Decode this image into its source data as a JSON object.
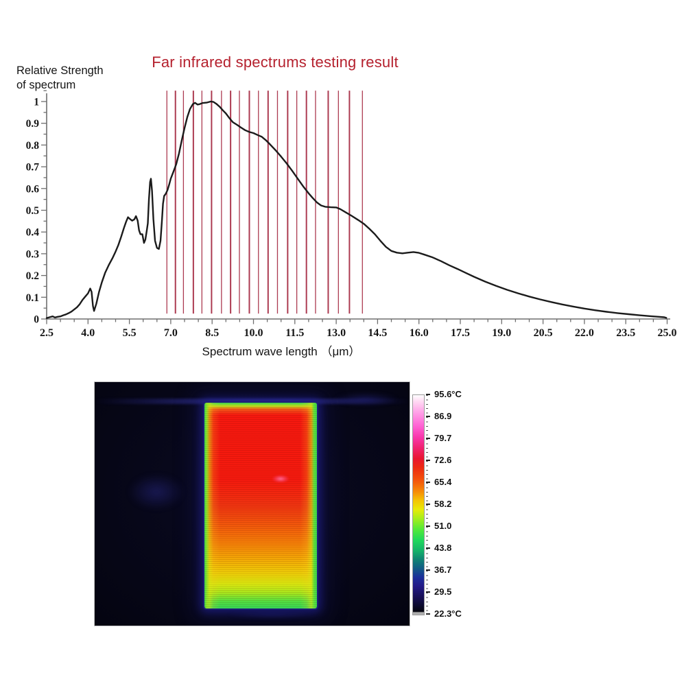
{
  "chart_data": {
    "type": "line",
    "title": "Far infrared spectrums testing result",
    "title_color": "#b5212e",
    "ylabel_line1": "Relative Strength",
    "ylabel_line2": "of spectrum",
    "xlabel": "Spectrum wave length （μm）",
    "xlim": [
      2.5,
      25.0
    ],
    "ylim": [
      0,
      1
    ],
    "grid": false,
    "legend": null,
    "x_tick_labels": [
      "2.5",
      "4.0",
      "5.5",
      "7.0",
      "8.5",
      "10.0",
      "11.5",
      "13.0",
      "14.5",
      "16.0",
      "17.5",
      "19.0",
      "20.5",
      "22.0",
      "23.5",
      "25.0"
    ],
    "x_minor_step": 0.5,
    "y_tick_labels": [
      "0",
      "0.1",
      "0.2",
      "0.3",
      "0.4",
      "0.5",
      "0.6",
      "0.7",
      "0.8",
      "0.9",
      "1"
    ],
    "y_minor_step": 0.05,
    "band_lines": {
      "color": "#a62a42",
      "top": 1.05,
      "bottom": 0.025,
      "wavelengths": [
        6.86,
        7.17,
        7.46,
        7.82,
        8.13,
        8.48,
        8.84,
        9.17,
        9.49,
        9.85,
        10.18,
        10.53,
        10.87,
        11.24,
        11.57,
        11.92,
        12.25,
        12.71,
        13.08,
        13.48,
        13.95
      ]
    },
    "series": [
      {
        "name": "relative spectrum strength",
        "color": "#1b1b1b",
        "points": [
          [
            2.5,
            0.004
          ],
          [
            2.6,
            0.008
          ],
          [
            2.72,
            0.012
          ],
          [
            2.8,
            0.007
          ],
          [
            2.9,
            0.01
          ],
          [
            3.0,
            0.012
          ],
          [
            3.1,
            0.017
          ],
          [
            3.2,
            0.021
          ],
          [
            3.3,
            0.027
          ],
          [
            3.4,
            0.034
          ],
          [
            3.5,
            0.044
          ],
          [
            3.6,
            0.054
          ],
          [
            3.7,
            0.068
          ],
          [
            3.8,
            0.088
          ],
          [
            3.9,
            0.103
          ],
          [
            4.0,
            0.118
          ],
          [
            4.08,
            0.14
          ],
          [
            4.13,
            0.125
          ],
          [
            4.18,
            0.06
          ],
          [
            4.22,
            0.037
          ],
          [
            4.3,
            0.07
          ],
          [
            4.4,
            0.125
          ],
          [
            4.5,
            0.168
          ],
          [
            4.62,
            0.212
          ],
          [
            4.75,
            0.247
          ],
          [
            4.9,
            0.283
          ],
          [
            5.0,
            0.31
          ],
          [
            5.1,
            0.34
          ],
          [
            5.2,
            0.377
          ],
          [
            5.3,
            0.418
          ],
          [
            5.38,
            0.447
          ],
          [
            5.45,
            0.468
          ],
          [
            5.52,
            0.46
          ],
          [
            5.6,
            0.452
          ],
          [
            5.68,
            0.458
          ],
          [
            5.74,
            0.473
          ],
          [
            5.8,
            0.452
          ],
          [
            5.85,
            0.408
          ],
          [
            5.9,
            0.39
          ],
          [
            5.97,
            0.39
          ],
          [
            6.03,
            0.35
          ],
          [
            6.08,
            0.365
          ],
          [
            6.13,
            0.405
          ],
          [
            6.17,
            0.44
          ],
          [
            6.21,
            0.55
          ],
          [
            6.25,
            0.63
          ],
          [
            6.28,
            0.645
          ],
          [
            6.32,
            0.59
          ],
          [
            6.37,
            0.46
          ],
          [
            6.43,
            0.36
          ],
          [
            6.5,
            0.327
          ],
          [
            6.57,
            0.322
          ],
          [
            6.63,
            0.36
          ],
          [
            6.68,
            0.45
          ],
          [
            6.72,
            0.53
          ],
          [
            6.76,
            0.566
          ],
          [
            6.82,
            0.576
          ],
          [
            6.88,
            0.592
          ],
          [
            6.94,
            0.617
          ],
          [
            7.0,
            0.645
          ],
          [
            7.1,
            0.678
          ],
          [
            7.2,
            0.712
          ],
          [
            7.3,
            0.762
          ],
          [
            7.4,
            0.822
          ],
          [
            7.5,
            0.878
          ],
          [
            7.6,
            0.928
          ],
          [
            7.7,
            0.966
          ],
          [
            7.8,
            0.988
          ],
          [
            7.88,
            0.994
          ],
          [
            7.97,
            0.986
          ],
          [
            8.05,
            0.988
          ],
          [
            8.15,
            0.993
          ],
          [
            8.3,
            0.995
          ],
          [
            8.45,
            1.0
          ],
          [
            8.55,
            0.998
          ],
          [
            8.65,
            0.99
          ],
          [
            8.78,
            0.975
          ],
          [
            8.9,
            0.958
          ],
          [
            9.0,
            0.945
          ],
          [
            9.12,
            0.925
          ],
          [
            9.25,
            0.905
          ],
          [
            9.4,
            0.893
          ],
          [
            9.55,
            0.88
          ],
          [
            9.7,
            0.868
          ],
          [
            9.85,
            0.86
          ],
          [
            10.0,
            0.855
          ],
          [
            10.15,
            0.846
          ],
          [
            10.3,
            0.838
          ],
          [
            10.45,
            0.822
          ],
          [
            10.6,
            0.803
          ],
          [
            10.8,
            0.776
          ],
          [
            11.0,
            0.747
          ],
          [
            11.2,
            0.716
          ],
          [
            11.4,
            0.682
          ],
          [
            11.6,
            0.646
          ],
          [
            11.8,
            0.61
          ],
          [
            12.0,
            0.578
          ],
          [
            12.15,
            0.556
          ],
          [
            12.3,
            0.536
          ],
          [
            12.45,
            0.522
          ],
          [
            12.6,
            0.516
          ],
          [
            12.8,
            0.514
          ],
          [
            13.0,
            0.513
          ],
          [
            13.15,
            0.505
          ],
          [
            13.35,
            0.49
          ],
          [
            13.55,
            0.475
          ],
          [
            13.8,
            0.455
          ],
          [
            14.0,
            0.438
          ],
          [
            14.2,
            0.415
          ],
          [
            14.4,
            0.39
          ],
          [
            14.6,
            0.36
          ],
          [
            14.8,
            0.332
          ],
          [
            15.0,
            0.313
          ],
          [
            15.2,
            0.305
          ],
          [
            15.4,
            0.302
          ],
          [
            15.6,
            0.305
          ],
          [
            15.8,
            0.308
          ],
          [
            16.0,
            0.304
          ],
          [
            16.2,
            0.296
          ],
          [
            16.5,
            0.283
          ],
          [
            16.8,
            0.266
          ],
          [
            17.1,
            0.247
          ],
          [
            17.4,
            0.23
          ],
          [
            17.7,
            0.212
          ],
          [
            18.0,
            0.194
          ],
          [
            18.4,
            0.172
          ],
          [
            18.8,
            0.152
          ],
          [
            19.2,
            0.134
          ],
          [
            19.6,
            0.118
          ],
          [
            20.0,
            0.103
          ],
          [
            20.4,
            0.09
          ],
          [
            20.8,
            0.078
          ],
          [
            21.2,
            0.067
          ],
          [
            21.6,
            0.057
          ],
          [
            22.0,
            0.048
          ],
          [
            22.4,
            0.04
          ],
          [
            22.8,
            0.033
          ],
          [
            23.2,
            0.027
          ],
          [
            23.6,
            0.022
          ],
          [
            24.0,
            0.017
          ],
          [
            24.4,
            0.013
          ],
          [
            24.7,
            0.01
          ],
          [
            24.9,
            0.008
          ],
          [
            24.97,
            0.005
          ]
        ]
      }
    ]
  },
  "thermal": {
    "colorbar_labels": [
      "95.6°C",
      "86.9",
      "79.7",
      "72.6",
      "65.4",
      "58.2",
      "51.0",
      "43.8",
      "36.7",
      "29.5",
      "22.3°C"
    ],
    "palette_top_to_bottom": [
      "#ffffff",
      "#ff9fe7",
      "#f937ad",
      "#e9152f",
      "#f4560b",
      "#f4c404",
      "#a9ee1b",
      "#20d95b",
      "#0f8273",
      "#1c2f9b",
      "#170f55",
      "#05050f"
    ]
  }
}
